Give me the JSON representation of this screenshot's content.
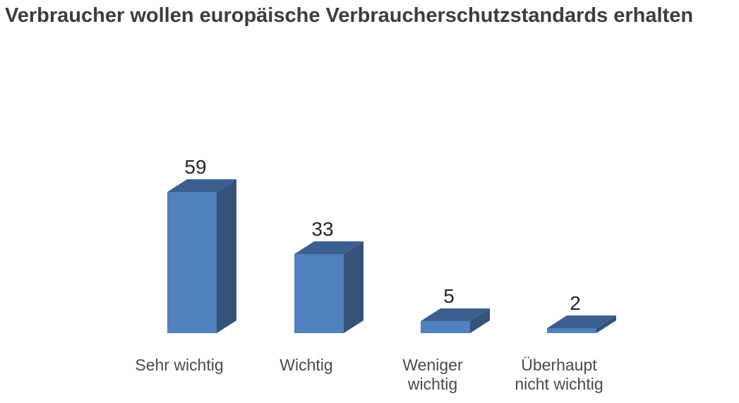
{
  "page": {
    "background_color": "#ffffff"
  },
  "chart_data": {
    "type": "bar",
    "subtype": "3d-column",
    "title": "Verbraucher wollen europäische Verbraucherschutzstandards erhalten",
    "categories": [
      "Sehr wichtig",
      "Wichtig",
      "Weniger wichtig",
      "Überhaupt nicht wichtig"
    ],
    "category_label_lines": [
      [
        "Sehr wichtig"
      ],
      [
        "Wichtig"
      ],
      [
        "Weniger",
        "wichtig"
      ],
      [
        "Überhaupt",
        "nicht wichtig"
      ]
    ],
    "values": [
      59,
      33,
      5,
      2
    ],
    "value_labels": [
      "59",
      "33",
      "5",
      "2"
    ],
    "xlabel": "",
    "ylabel": "",
    "ylim": [
      0,
      65
    ],
    "grid": false,
    "legend": false,
    "axes_visible": false,
    "colors": {
      "bar_front": "#4e81bd",
      "bar_top": "#3b608f",
      "bar_side": "#34527a",
      "title_text": "#3c3c3c",
      "value_text": "#262626",
      "category_text": "#4a4a4a"
    }
  }
}
